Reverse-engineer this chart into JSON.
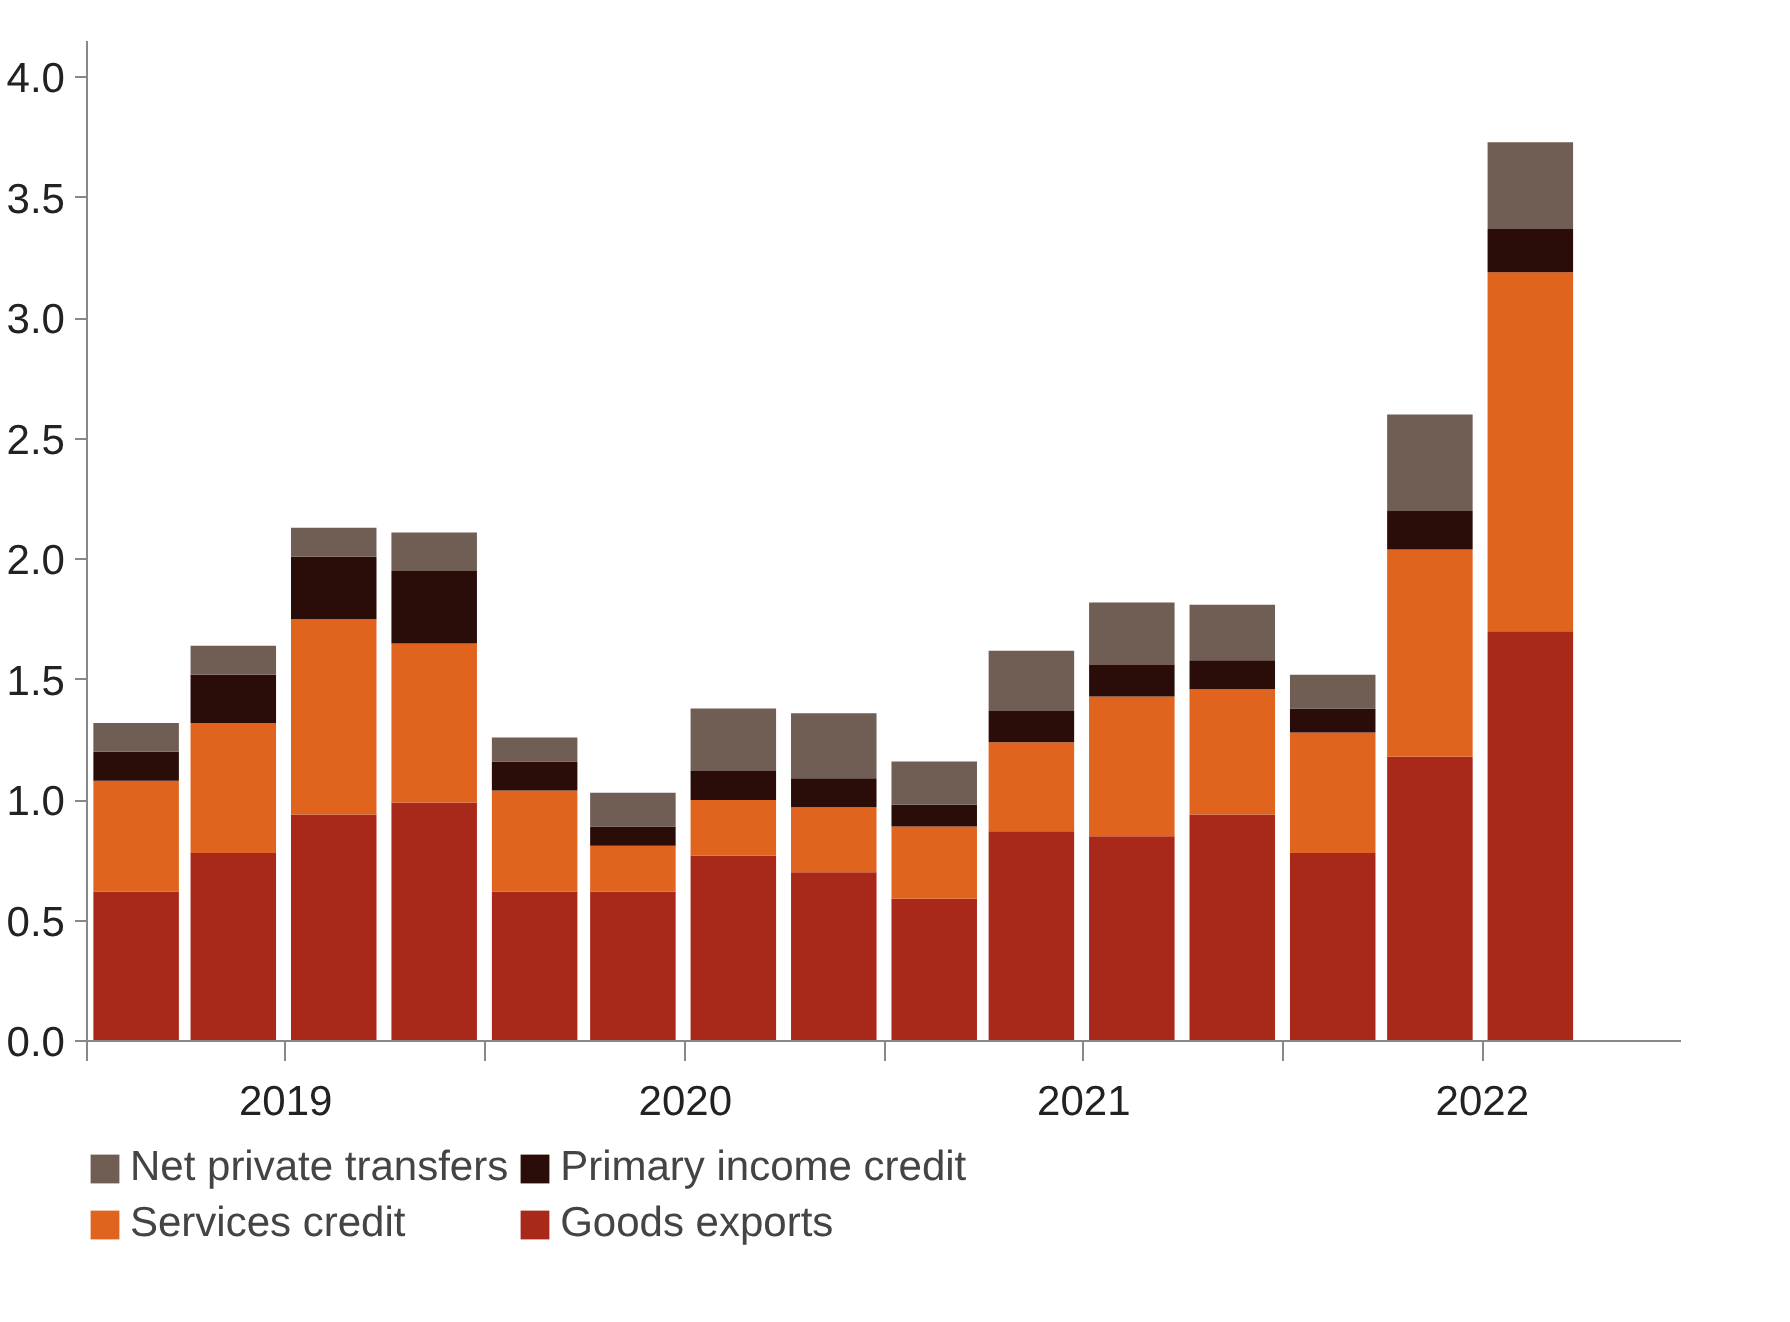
{
  "chart_data": {
    "type": "bar",
    "stacked": true,
    "x": [
      "2019-02-15",
      "2019-05-15",
      "2019-08-15",
      "2019-11-15",
      "2020-02-15",
      "2020-05-15",
      "2020-08-15",
      "2020-11-15",
      "2021-02-15",
      "2021-05-15",
      "2021-08-15",
      "2021-11-15",
      "2022-02-15",
      "2022-05-15",
      "2022-08-15"
    ],
    "series": [
      {
        "name": "Goods exports",
        "color": "#a8291a",
        "values": [
          0.62,
          0.78,
          0.94,
          0.99,
          0.62,
          0.62,
          0.77,
          0.7,
          0.59,
          0.87,
          0.85,
          0.94,
          0.78,
          1.18,
          1.7
        ]
      },
      {
        "name": "Services credit",
        "color": "#e0641e",
        "values": [
          0.46,
          0.54,
          0.81,
          0.66,
          0.42,
          0.19,
          0.23,
          0.27,
          0.3,
          0.37,
          0.58,
          0.52,
          0.5,
          0.86,
          1.49
        ]
      },
      {
        "name": "Primary income credit",
        "color": "#2a0c08",
        "values": [
          0.12,
          0.2,
          0.26,
          0.3,
          0.12,
          0.08,
          0.12,
          0.12,
          0.09,
          0.13,
          0.13,
          0.12,
          0.1,
          0.16,
          0.18
        ]
      },
      {
        "name": "Net private transfers",
        "color": "#705e55",
        "values": [
          0.12,
          0.12,
          0.12,
          0.16,
          0.1,
          0.14,
          0.26,
          0.27,
          0.18,
          0.25,
          0.26,
          0.23,
          0.14,
          0.4,
          0.36
        ]
      }
    ],
    "xlim": [
      "2019-01-01",
      "2022-12-31"
    ],
    "xticks": [
      {
        "value": "2019-01-01",
        "label": null
      },
      {
        "value": "2019-07-02",
        "label": "2019"
      },
      {
        "value": "2020-01-01",
        "label": null
      },
      {
        "value": "2020-07-02",
        "label": "2020"
      },
      {
        "value": "2021-01-01",
        "label": null
      },
      {
        "value": "2021-07-02",
        "label": "2021"
      },
      {
        "value": "2022-01-01",
        "label": null
      },
      {
        "value": "2022-07-02",
        "label": "2022"
      }
    ],
    "ylim": [
      0,
      4.15
    ],
    "yticks": [
      {
        "value": 0,
        "label": "0.0"
      },
      0.5,
      {
        "value": 1,
        "label": "1.0"
      },
      1.5,
      {
        "value": 2,
        "label": "2.0"
      },
      2.5,
      {
        "value": 3,
        "label": "3.0"
      },
      3.5,
      {
        "value": 4,
        "label": "4.0"
      }
    ],
    "grid": false,
    "legend": "bottom"
  }
}
